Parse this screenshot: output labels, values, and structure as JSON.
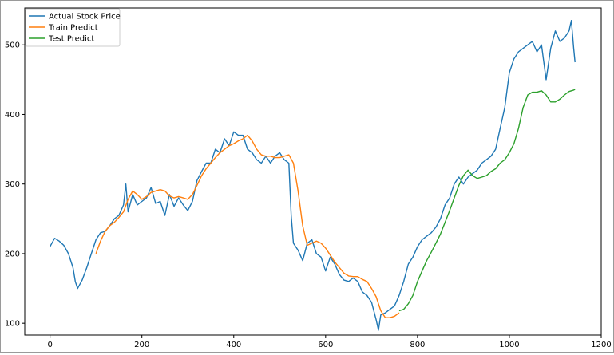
{
  "chart_data": {
    "type": "line",
    "title": "",
    "xlabel": "",
    "ylabel": "",
    "xlim": [
      -55,
      1200
    ],
    "ylim": [
      83,
      553
    ],
    "x_ticks": [
      0,
      200,
      400,
      600,
      800,
      1000,
      1200
    ],
    "y_ticks": [
      100,
      200,
      300,
      400,
      500
    ],
    "legend_position": "top-left",
    "series": [
      {
        "name": "Actual Stock Price",
        "color": "#1f77b4",
        "x": [
          0,
          10,
          20,
          30,
          40,
          50,
          55,
          60,
          70,
          80,
          90,
          100,
          110,
          120,
          130,
          140,
          150,
          160,
          165,
          170,
          180,
          190,
          200,
          210,
          220,
          230,
          240,
          250,
          260,
          270,
          280,
          290,
          300,
          310,
          320,
          330,
          340,
          350,
          360,
          370,
          380,
          390,
          400,
          410,
          420,
          430,
          440,
          450,
          460,
          470,
          480,
          490,
          500,
          510,
          520,
          525,
          530,
          540,
          550,
          560,
          570,
          580,
          590,
          600,
          610,
          620,
          630,
          640,
          650,
          660,
          670,
          680,
          690,
          700,
          710,
          715,
          720,
          730,
          740,
          750,
          760,
          770,
          780,
          790,
          800,
          810,
          820,
          830,
          840,
          850,
          860,
          870,
          880,
          890,
          900,
          910,
          920,
          930,
          940,
          950,
          960,
          970,
          980,
          990,
          1000,
          1010,
          1020,
          1030,
          1040,
          1050,
          1060,
          1070,
          1080,
          1090,
          1100,
          1110,
          1120,
          1130,
          1135,
          1140,
          1143
        ],
        "y": [
          210,
          222,
          218,
          212,
          200,
          180,
          160,
          150,
          162,
          180,
          200,
          220,
          230,
          232,
          240,
          250,
          255,
          270,
          300,
          260,
          285,
          270,
          275,
          280,
          295,
          272,
          275,
          255,
          285,
          268,
          280,
          270,
          262,
          275,
          305,
          318,
          330,
          330,
          350,
          345,
          365,
          355,
          375,
          370,
          370,
          350,
          345,
          335,
          330,
          340,
          330,
          340,
          345,
          335,
          330,
          255,
          215,
          205,
          190,
          215,
          220,
          200,
          195,
          175,
          195,
          185,
          170,
          162,
          160,
          165,
          160,
          145,
          140,
          130,
          105,
          90,
          112,
          115,
          120,
          125,
          140,
          160,
          185,
          195,
          210,
          220,
          225,
          230,
          238,
          250,
          270,
          280,
          300,
          310,
          300,
          310,
          315,
          320,
          330,
          335,
          340,
          350,
          380,
          410,
          460,
          480,
          490,
          495,
          500,
          505,
          490,
          500,
          450,
          495,
          520,
          505,
          510,
          520,
          535,
          495,
          475
        ]
      },
      {
        "name": "Train Predict",
        "color": "#ff7f0e",
        "x": [
          100,
          110,
          120,
          130,
          140,
          150,
          160,
          170,
          180,
          190,
          200,
          210,
          220,
          230,
          240,
          250,
          260,
          270,
          280,
          290,
          300,
          310,
          320,
          330,
          340,
          350,
          360,
          370,
          380,
          390,
          400,
          410,
          420,
          430,
          440,
          450,
          460,
          470,
          480,
          490,
          500,
          510,
          520,
          530,
          540,
          550,
          560,
          570,
          580,
          590,
          600,
          610,
          620,
          630,
          640,
          650,
          660,
          670,
          680,
          690,
          700,
          710,
          720,
          730,
          740,
          750,
          760
        ],
        "y": [
          200,
          218,
          232,
          240,
          245,
          252,
          260,
          278,
          290,
          285,
          278,
          282,
          288,
          290,
          292,
          290,
          283,
          280,
          282,
          280,
          278,
          285,
          298,
          312,
          322,
          330,
          338,
          345,
          350,
          355,
          358,
          362,
          365,
          370,
          362,
          350,
          342,
          340,
          340,
          338,
          338,
          340,
          342,
          330,
          290,
          240,
          212,
          215,
          218,
          215,
          208,
          198,
          188,
          180,
          172,
          168,
          167,
          167,
          163,
          160,
          150,
          138,
          118,
          108,
          108,
          110,
          115
        ]
      },
      {
        "name": "Test Predict",
        "color": "#2ca02c",
        "x": [
          760,
          770,
          780,
          790,
          800,
          810,
          820,
          830,
          840,
          850,
          860,
          870,
          880,
          890,
          900,
          910,
          920,
          930,
          940,
          950,
          960,
          970,
          980,
          990,
          1000,
          1010,
          1020,
          1030,
          1040,
          1050,
          1060,
          1070,
          1080,
          1090,
          1100,
          1110,
          1120,
          1130,
          1140,
          1143
        ],
        "y": [
          118,
          120,
          128,
          140,
          160,
          175,
          190,
          202,
          215,
          228,
          245,
          262,
          280,
          298,
          312,
          320,
          312,
          308,
          310,
          312,
          318,
          322,
          330,
          335,
          345,
          358,
          380,
          410,
          428,
          432,
          432,
          434,
          428,
          418,
          418,
          422,
          428,
          433,
          435,
          436
        ]
      }
    ]
  }
}
